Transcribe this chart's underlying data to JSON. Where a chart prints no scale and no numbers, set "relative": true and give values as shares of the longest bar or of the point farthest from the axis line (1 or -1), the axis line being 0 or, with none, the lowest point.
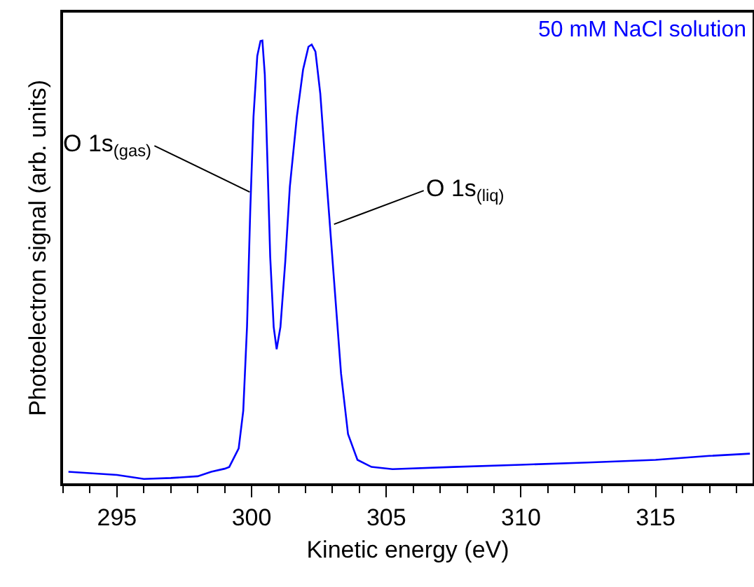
{
  "chart_data": {
    "type": "line",
    "relative": true,
    "xlabel": "Kinetic energy (eV)",
    "ylabel": "Photoelectron signal (arb. units)",
    "xlim": [
      293,
      318.6
    ],
    "xticks": [
      295,
      300,
      305,
      310,
      315
    ],
    "grid": false,
    "marker": "none",
    "line_style": "solid",
    "tick_labels": "x",
    "series": [
      {
        "color": "#0000ff",
        "x": [
          293.2,
          294,
          295,
          296,
          297,
          298,
          298.5,
          299,
          299.17,
          299.52,
          299.69,
          299.83,
          299.95,
          300.07,
          300.21,
          300.33,
          300.4,
          300.49,
          300.59,
          300.69,
          300.82,
          300.93,
          301.07,
          301.25,
          301.42,
          301.68,
          301.91,
          302.11,
          302.23,
          302.37,
          302.55,
          302.8,
          303.06,
          303.32,
          303.58,
          303.93,
          304.45,
          305.23,
          307.5,
          310,
          312.5,
          315,
          317,
          318.5
        ],
        "values": [
          0.026,
          0.023,
          0.019,
          0.01,
          0.012,
          0.016,
          0.026,
          0.033,
          0.037,
          0.079,
          0.164,
          0.354,
          0.617,
          0.828,
          0.965,
          0.999,
          1,
          0.923,
          0.722,
          0.512,
          0.353,
          0.303,
          0.353,
          0.501,
          0.67,
          0.828,
          0.934,
          0.986,
          0.991,
          0.975,
          0.88,
          0.67,
          0.459,
          0.248,
          0.111,
          0.053,
          0.037,
          0.032,
          0.037,
          0.042,
          0.047,
          0.053,
          0.062,
          0.067
        ]
      }
    ],
    "annotations": [
      "50 mM NaCl solution",
      {
        "text": "O 1s$_{(gas)}$",
        "x": 299.93,
        "y": 0.658
      },
      {
        "text": "O 1s$_{(liq)}$",
        "x": 303.06,
        "y": 0.585
      }
    ]
  }
}
